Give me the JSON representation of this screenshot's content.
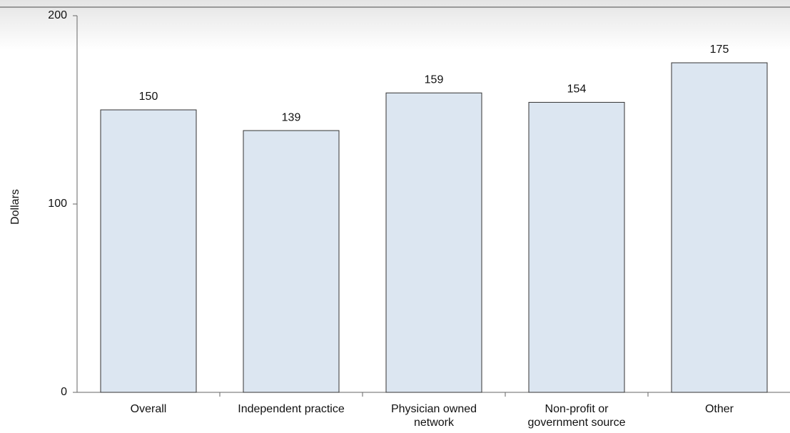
{
  "chart_data": {
    "type": "bar",
    "y_label": "Dollars",
    "categories": [
      "Overall",
      "Independent practice",
      "Physician owned network",
      "Non-profit or government source",
      "Other"
    ],
    "values": [
      150,
      139,
      159,
      154,
      175
    ],
    "color": "#dce6f1",
    "ylim": [
      0,
      200
    ],
    "yticks": [
      0,
      100,
      200
    ],
    "grid": false
  }
}
